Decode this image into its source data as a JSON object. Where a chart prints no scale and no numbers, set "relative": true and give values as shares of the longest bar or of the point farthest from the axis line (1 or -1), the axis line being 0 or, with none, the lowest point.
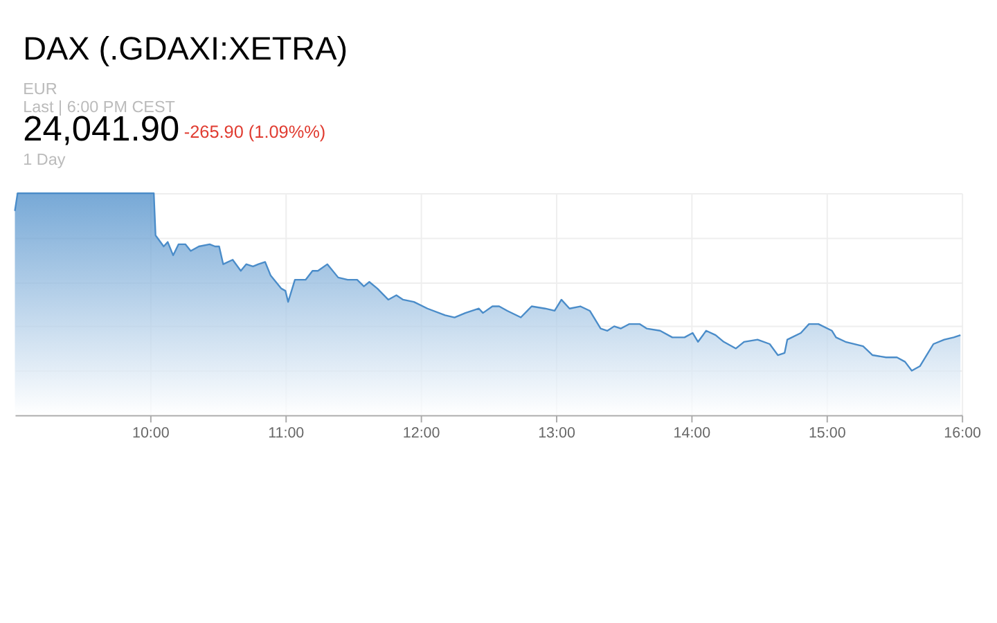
{
  "chart_data": {
    "type": "area",
    "relative": true,
    "title": "DAX (.GDAXI:XETRA)",
    "annotations": [
      "EUR",
      "Last | 6:00 PM CEST",
      "24,041.90",
      "-265.90 (1.09%%)",
      "1 Day"
    ],
    "xlim": [
      9,
      16
    ],
    "xticks": [
      {
        "value": 10,
        "label": "10:00"
      },
      {
        "value": 11,
        "label": "11:00"
      },
      {
        "value": 12,
        "label": "12:00"
      },
      {
        "value": 13,
        "label": "13:00"
      },
      {
        "value": 14,
        "label": "14:00"
      },
      {
        "value": 15,
        "label": "15:00"
      },
      {
        "value": 16,
        "label": "16:00"
      }
    ],
    "grid": true,
    "tick_labels": "x",
    "series": [
      {
        "color": "#4a8cc9",
        "x": [
          9.0,
          9.02,
          10.027,
          10.04,
          10.1,
          10.13,
          10.17,
          10.21,
          10.26,
          10.3,
          10.36,
          10.44,
          10.48,
          10.51,
          10.54,
          10.61,
          10.67,
          10.71,
          10.76,
          10.8,
          10.85,
          10.89,
          10.97,
          11.0,
          11.02,
          11.07,
          11.15,
          11.2,
          11.24,
          11.31,
          11.39,
          11.46,
          11.53,
          11.58,
          11.62,
          11.68,
          11.76,
          11.82,
          11.87,
          11.95,
          12.05,
          12.18,
          12.25,
          12.33,
          12.43,
          12.46,
          12.53,
          12.58,
          12.64,
          12.74,
          12.82,
          12.92,
          12.99,
          13.04,
          13.1,
          13.18,
          13.25,
          13.33,
          13.38,
          13.43,
          13.48,
          13.54,
          13.62,
          13.67,
          13.77,
          13.86,
          13.95,
          14.01,
          14.05,
          14.11,
          14.18,
          14.24,
          14.33,
          14.39,
          14.49,
          14.58,
          14.64,
          14.69,
          14.71,
          14.81,
          14.87,
          14.94,
          15.04,
          15.07,
          15.14,
          15.27,
          15.34,
          15.44,
          15.52,
          15.58,
          15.63,
          15.69,
          15.79,
          15.87,
          15.94,
          15.99
        ],
        "values": [
          0.92,
          1.0,
          1.0,
          0.81,
          0.76,
          0.78,
          0.72,
          0.77,
          0.77,
          0.74,
          0.76,
          0.77,
          0.76,
          0.76,
          0.68,
          0.7,
          0.65,
          0.68,
          0.67,
          0.68,
          0.69,
          0.63,
          0.57,
          0.56,
          0.51,
          0.61,
          0.61,
          0.65,
          0.65,
          0.68,
          0.62,
          0.61,
          0.61,
          0.58,
          0.6,
          0.57,
          0.52,
          0.54,
          0.52,
          0.51,
          0.48,
          0.45,
          0.44,
          0.46,
          0.48,
          0.46,
          0.49,
          0.49,
          0.47,
          0.44,
          0.49,
          0.48,
          0.47,
          0.52,
          0.48,
          0.49,
          0.47,
          0.39,
          0.38,
          0.4,
          0.39,
          0.41,
          0.41,
          0.39,
          0.38,
          0.35,
          0.35,
          0.37,
          0.33,
          0.38,
          0.36,
          0.33,
          0.3,
          0.33,
          0.34,
          0.32,
          0.27,
          0.28,
          0.34,
          0.37,
          0.41,
          0.41,
          0.38,
          0.35,
          0.33,
          0.31,
          0.27,
          0.26,
          0.26,
          0.24,
          0.2,
          0.22,
          0.32,
          0.34,
          0.35,
          0.36
        ]
      }
    ]
  }
}
